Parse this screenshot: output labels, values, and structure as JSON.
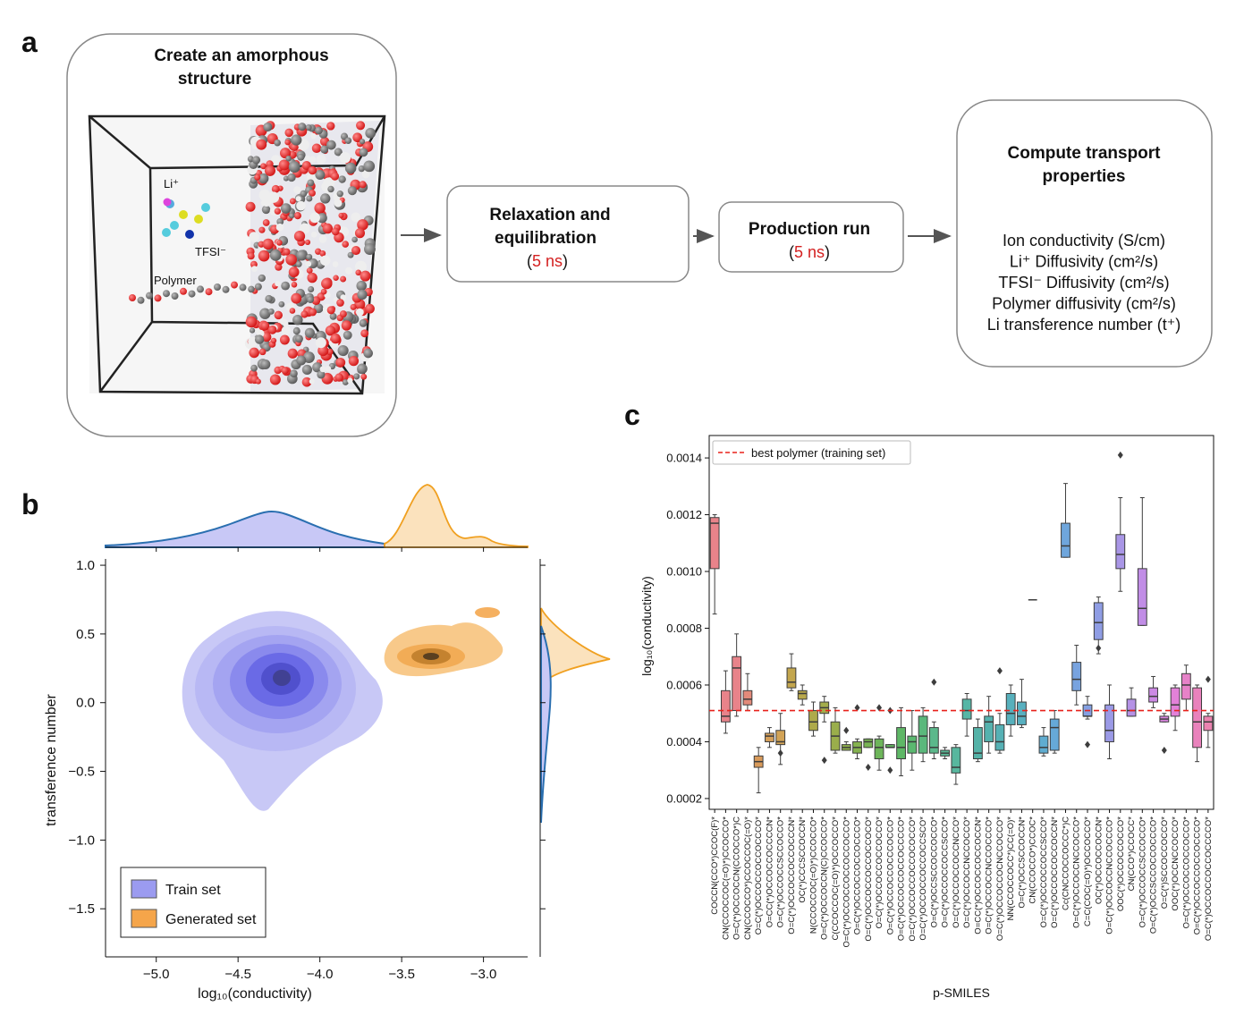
{
  "panel_a": {
    "label": "a",
    "create": {
      "title": [
        "Create an amorphous",
        "structure"
      ],
      "li": "Li⁺",
      "tfsi": "TFSI⁻",
      "polymer": "Polymer"
    },
    "relax": {
      "title": [
        "Relaxation and",
        "equilibration"
      ],
      "note": [
        "(",
        "5 ns",
        ")"
      ]
    },
    "production": {
      "title": "Production run",
      "note": [
        "(",
        "5 ns",
        ")"
      ]
    },
    "compute": {
      "title": [
        "Compute transport",
        "properties"
      ],
      "items": [
        "Ion conductivity (S/cm)",
        "Li⁺ Diffusivity (cm²/s)",
        "TFSI⁻ Diffusivity (cm²/s)",
        "Polymer diffusivity (cm²/s)",
        "Li transference number (t⁺)"
      ]
    }
  },
  "panel_b": {
    "label": "b",
    "chart_data": {
      "type": "kde",
      "xlabel": "log₁₀(conductivity)",
      "ylabel": "transference number",
      "xlim": [
        -5.31,
        -2.73
      ],
      "ylim": [
        -1.85,
        1.046
      ],
      "xticks": [
        {
          "value": -5.0,
          "label": "−5.0"
        },
        {
          "value": -4.5,
          "label": "−4.5"
        },
        {
          "value": -4.0,
          "label": "−4.0"
        },
        {
          "value": -3.5,
          "label": "−3.5"
        },
        {
          "value": -3.0,
          "label": "−3.0"
        }
      ],
      "yticks": [
        {
          "value": 1.0,
          "label": "1.0"
        },
        0.5,
        {
          "value": 0.0,
          "label": "0.0"
        },
        {
          "value": -0.5,
          "label": "−0.5"
        },
        {
          "value": -1.0,
          "label": "−1.0"
        },
        {
          "value": -1.5,
          "label": "−1.5"
        }
      ],
      "series": [
        {
          "name": "Train set",
          "color": "#9b9bf0"
        },
        {
          "name": "Generated set",
          "color": "#f5a54a"
        }
      ]
    }
  },
  "panel_c": {
    "label": "c",
    "chart_data": {
      "type": "box",
      "xlabel": "p-SMILES",
      "ylabel": "log₁₀(conductivity)",
      "ylim": [
        0.000162,
        0.001479
      ],
      "yticks": [
        0.0002,
        0.0004,
        0.0006,
        0.0008,
        {
          "value": 0.001,
          "label": "0.0010"
        },
        0.0012,
        0.0014
      ],
      "reference": {
        "name": "best polymer (training set)",
        "value": 0.00051,
        "color": "#e8221c"
      },
      "categories": [
        "COCCN(CCO*)CCOC(F)*",
        "CN(CCOCCOC(=O)*)CCOCCO*",
        "O=C(*)OCCOCCN(CCOCCO*)C",
        "CN(CCOCCO*)CCOCCOC(=O)*",
        "O=C(*)OCCOCCOCCOCCCO*",
        "O=CC(*)OCCOCCOCCCCN*",
        "O=C(*)OCCOCCSCCOCCO*",
        "O=C(*)OCCOCCOCCOCCCN*",
        "OC(*)CCCSCCOCCN*",
        "N(CCOCCOC(=O)*)CCOCCO*",
        "O=C(*)OCCOCCN(C)CCOCCO*",
        "C(CCOCCOC(=O)*)OCCOCCO*",
        "O=C(*)OCCOCCOCCOCCOCCO*",
        "O=C(*)OCCOCCOCCOCCCO*",
        "O=C(*)OCCOCCOCCOCCOCO*",
        "O=C(*)OCCOCCOCCOCCO*",
        "O=C(*)OCCOCCOCCCOCCO*",
        "O=C(*)OCCOCCOCCOCCCCO*",
        "O=C(*)OCCOCCOCCOCOCCO*",
        "O=C(*)OCCOCCOCCOCCSCO*",
        "O=C(*)OCCSCCOCCOCCO*",
        "O=C(*)OCCOCCOCCSCCO*",
        "O=C(*)OCCOCCOCCNCCO*",
        "O=C(*)OCCOCCNCCOCCO*",
        "O=CC(*)OCCOCCOCCOCCN*",
        "O=C(*)OCCOCCNCCOCCCO*",
        "O=C(*)OCCOCCOCNCCOCCO*",
        "NN(CCOCCOCC*)CC(=O)*",
        "O=C(*)OCCSCCOCCN*",
        "CN(CCOCCO*)CCOC*",
        "O=C(*)OCCOCCOCCSCCO*",
        "O=C(*)OCCOCCOCCOCCN*",
        "Cc(CNCCOCCOCCC*)C",
        "O=C(*)OCCOCCNCCOCCO*",
        "C=C(COC(=O)*)OCCOCCO*",
        "OC(*)OCCOCCOCCN*",
        "O=C(*)OCCOCCNCCOCCCO*",
        "OOC(*)OCCOCCOCCO*",
        "CN(CCO*)CCOCC*",
        "O=C(*)OCCOCCSCCOCCO*",
        "O=C(*)OCCSCCOCCOCCCO*",
        "O=C(*)SCCOCCOCCO*",
        "OOC(*)OCCNCCOCCO*",
        "O=C(*)OCCOCCOCCOCCO*",
        "O=C(*)OCCOCCOCCOCCCO*",
        "O=C(*)OCCOCCOCCOCCCCO*"
      ],
      "whislo": [
        0.00085,
        0.00043,
        0.00049,
        0.00051,
        0.00022,
        0.00038,
        0.00032,
        0.00058,
        0.00053,
        0.00042,
        0.00047,
        0.00036,
        0.00037,
        0.00034,
        0.00038,
        0.0003,
        0.00038,
        0.00028,
        0.0003,
        0.00033,
        0.00034,
        0.00034,
        0.00025,
        0.00042,
        0.00033,
        0.00036,
        0.00036,
        0.00042,
        0.00045,
        0.0009,
        0.00035,
        0.00036,
        0.00105,
        0.00053,
        0.00048,
        0.00071,
        0.00034,
        0.00093,
        0.00049,
        0.00081,
        0.00052,
        0.00047,
        0.00044,
        0.00051,
        0.00033,
        0.00038
      ],
      "q1": [
        0.00101,
        0.00047,
        0.00051,
        0.00053,
        0.00031,
        0.0004,
        0.00039,
        0.00059,
        0.00055,
        0.00044,
        0.0005,
        0.00037,
        0.00037,
        0.00036,
        0.00038,
        0.00034,
        0.00038,
        0.00034,
        0.00036,
        0.00036,
        0.00036,
        0.00035,
        0.00029,
        0.00048,
        0.00034,
        0.0004,
        0.00037,
        0.00046,
        0.00046,
        0.0009,
        0.00036,
        0.00037,
        0.00105,
        0.00058,
        0.00049,
        0.00076,
        0.0004,
        0.00101,
        0.00049,
        0.00081,
        0.00054,
        0.00047,
        0.00049,
        0.00055,
        0.00038,
        0.00044
      ],
      "median": [
        0.00117,
        0.00049,
        0.00066,
        0.00055,
        0.00033,
        0.00042,
        0.0004,
        0.00061,
        0.00057,
        0.00047,
        0.00052,
        0.00042,
        0.00038,
        0.00038,
        0.0004,
        0.00038,
        0.00038,
        0.00038,
        0.0004,
        0.00042,
        0.00038,
        0.00036,
        0.00031,
        0.00051,
        0.00036,
        0.00047,
        0.0004,
        0.0005,
        0.00049,
        0.0009,
        0.00038,
        0.00045,
        0.00109,
        0.00062,
        0.00049,
        0.00082,
        0.00044,
        0.00106,
        0.00051,
        0.00087,
        0.00056,
        0.00048,
        0.00053,
        0.0006,
        0.00047,
        0.00047
      ],
      "q3": [
        0.00119,
        0.00058,
        0.0007,
        0.00058,
        0.00035,
        0.00043,
        0.00044,
        0.00066,
        0.00058,
        0.00051,
        0.00054,
        0.00047,
        0.00039,
        0.0004,
        0.00041,
        0.00041,
        0.00039,
        0.00045,
        0.00042,
        0.00049,
        0.00045,
        0.00037,
        0.00038,
        0.00055,
        0.00045,
        0.00049,
        0.00046,
        0.00057,
        0.00054,
        0.0009,
        0.00042,
        0.00048,
        0.00117,
        0.00068,
        0.00053,
        0.00089,
        0.00053,
        0.00113,
        0.00055,
        0.00101,
        0.00059,
        0.00049,
        0.00059,
        0.00064,
        0.00059,
        0.00049
      ],
      "whishi": [
        0.0012,
        0.00065,
        0.00078,
        0.00064,
        0.00038,
        0.00045,
        0.0005,
        0.00071,
        0.0006,
        0.00054,
        0.00056,
        0.00052,
        0.0004,
        0.00041,
        0.00041,
        0.00042,
        0.00039,
        0.00052,
        0.00051,
        0.00052,
        0.00047,
        0.00038,
        0.00039,
        0.00057,
        0.00048,
        0.00056,
        0.0005,
        0.0006,
        0.00062,
        0.0009,
        0.00045,
        0.00051,
        0.00131,
        0.00074,
        0.00056,
        0.00091,
        0.0006,
        0.00126,
        0.00059,
        0.00126,
        0.00063,
        0.0005,
        0.0006,
        0.00067,
        0.0006,
        0.0005
      ],
      "fliers": [
        [],
        [],
        [],
        [],
        [],
        [],
        [
          0.00036
        ],
        [],
        [],
        [],
        [
          0.000335
        ],
        [],
        [
          0.00044
        ],
        [
          0.00052
        ],
        [
          0.00031
        ],
        [
          0.00052
        ],
        [
          0.00051,
          0.0003
        ],
        [],
        [],
        [],
        [
          0.00061
        ],
        [],
        [],
        [],
        [],
        [],
        [
          0.00065
        ],
        [],
        [],
        [],
        [],
        [],
        [],
        [],
        [
          0.00039
        ],
        [
          0.00073
        ],
        [],
        [
          0.00141
        ],
        [],
        [],
        [],
        [
          0.00037
        ],
        [],
        [],
        [],
        [
          0.00062
        ]
      ],
      "colors": [
        "#e8838a",
        "#e8838a",
        "#e8838a",
        "#e38a7a",
        "#d89a5a",
        "#d6a05a",
        "#d2a356",
        "#c3a64e",
        "#b9a84b",
        "#aeaa4b",
        "#a4ad4b",
        "#9aae4b",
        "#8fb04b",
        "#85b24f",
        "#78b454",
        "#6db55a",
        "#64b660",
        "#5eb766",
        "#5bb870",
        "#5bb87c",
        "#5bb88b",
        "#5ab895",
        "#58b79e",
        "#56b6a6",
        "#55b3a8",
        "#55b2ae",
        "#56b1b5",
        "#57b0bc",
        "#58b0c0",
        "#5aaec8",
        "#5facd0",
        "#66a9d8",
        "#6fa6dc",
        "#78a3df",
        "#84a0e2",
        "#8f9de4",
        "#9b9ae6",
        "#a996e6",
        "#b592e6",
        "#c18de6",
        "#cc89e4",
        "#d785dd",
        "#e281d8",
        "#e682c8",
        "#e982bc",
        "#eb83b0"
      ]
    }
  }
}
